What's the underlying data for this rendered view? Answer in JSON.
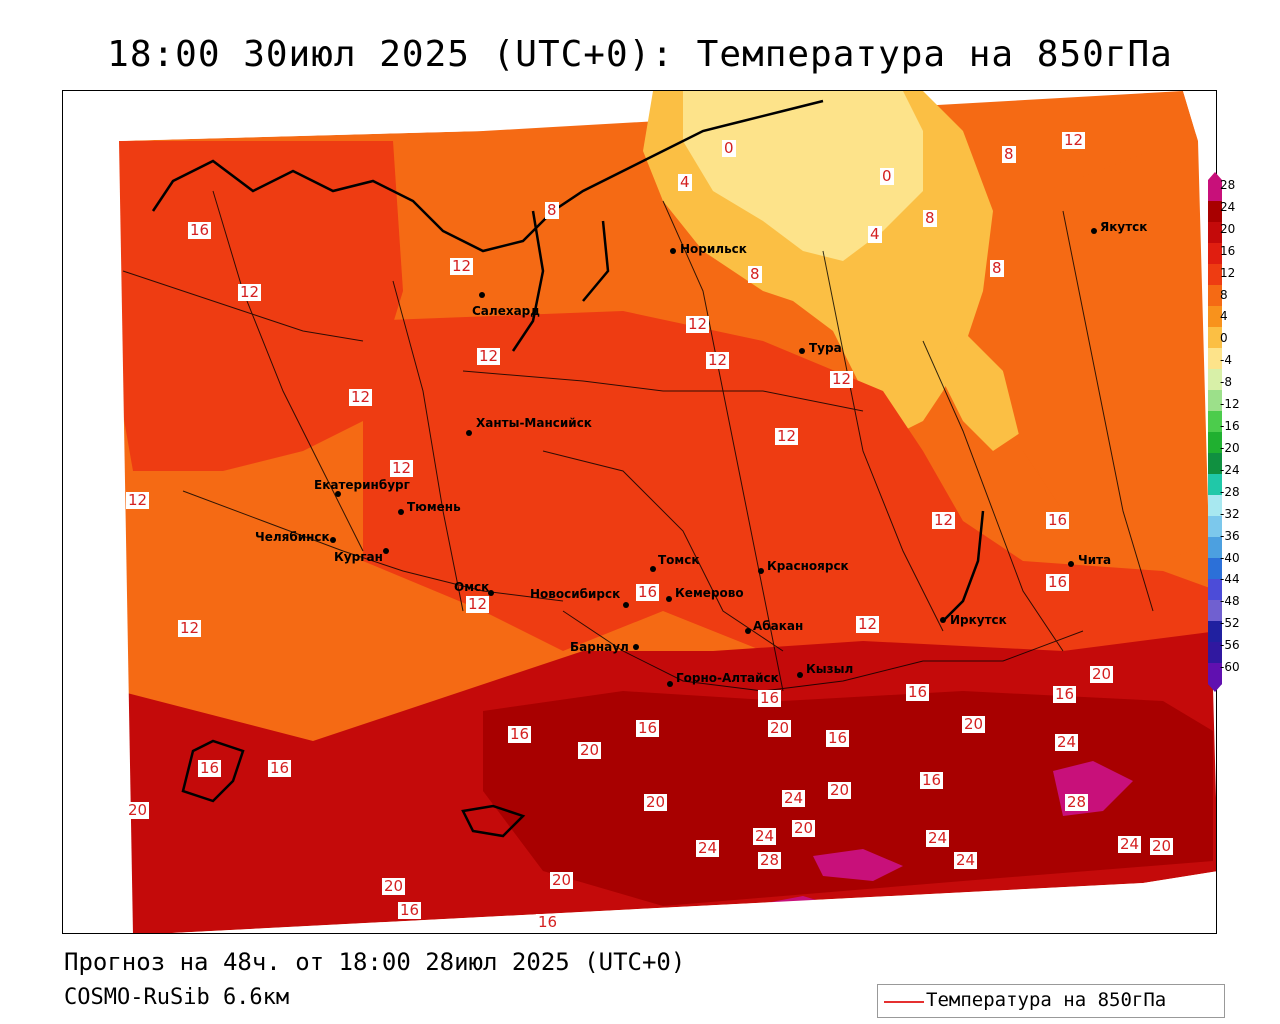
{
  "title": "18:00 30июл 2025 (UTC+0): Температура на 850гПа",
  "forecast_line": "Прогноз на 48ч. от 18:00 28июл 2025 (UTC+0)",
  "model_line": "COSMO-RuSib 6.6км",
  "legend": {
    "label": "Температура на 850гПа",
    "line_color": "#e53030"
  },
  "colorbar": {
    "ticks": [
      "28",
      "24",
      "20",
      "16",
      "12",
      "8",
      "4",
      "0",
      "-4",
      "-8",
      "-12",
      "-16",
      "-20",
      "-24",
      "-28",
      "-32",
      "-36",
      "-40",
      "-44",
      "-48",
      "-52",
      "-56",
      "-60"
    ],
    "colors": [
      "#c8107a",
      "#a80000",
      "#c40a0a",
      "#e01e10",
      "#ee3c12",
      "#f56a14",
      "#f8921c",
      "#fbbf44",
      "#fde38a",
      "#d8f0a8",
      "#9ce08a",
      "#4ccc4c",
      "#20b030",
      "#109040",
      "#20c8a8",
      "#a8e8f0",
      "#7cc8ec",
      "#4ca0e0",
      "#2c70d8",
      "#4c4cd8",
      "#7060d0",
      "#2020a0",
      "#3018a0",
      "#6010b0"
    ]
  },
  "cities": [
    {
      "name": "Норильск"
    },
    {
      "name": "Якутск"
    },
    {
      "name": "Салехард"
    },
    {
      "name": "Тура"
    },
    {
      "name": "Ханты-Мансийск"
    },
    {
      "name": "Екатеринбург"
    },
    {
      "name": "Тюмень"
    },
    {
      "name": "Челябинск"
    },
    {
      "name": "Курган"
    },
    {
      "name": "Омск"
    },
    {
      "name": "Новосибирск"
    },
    {
      "name": "Томск"
    },
    {
      "name": "Кемерово"
    },
    {
      "name": "Красноярск"
    },
    {
      "name": "Барнаул"
    },
    {
      "name": "Абакан"
    },
    {
      "name": "Горно-Алтайск"
    },
    {
      "name": "Кызыл"
    },
    {
      "name": "Иркутск"
    },
    {
      "name": "Чита"
    }
  ],
  "isotherm_labels": [
    "0",
    "0",
    "4",
    "4",
    "8",
    "8",
    "8",
    "8",
    "8",
    "12",
    "16",
    "12",
    "12",
    "12",
    "12",
    "12",
    "12",
    "12",
    "12",
    "12",
    "12",
    "12",
    "12",
    "12",
    "12",
    "16",
    "16",
    "16",
    "16",
    "16",
    "16",
    "16",
    "16",
    "16",
    "16",
    "16",
    "16",
    "20",
    "20",
    "20",
    "20",
    "20",
    "20",
    "20",
    "20",
    "20",
    "20",
    "20",
    "24",
    "24",
    "24",
    "24",
    "24",
    "24",
    "24",
    "28",
    "28",
    "16",
    "16"
  ]
}
